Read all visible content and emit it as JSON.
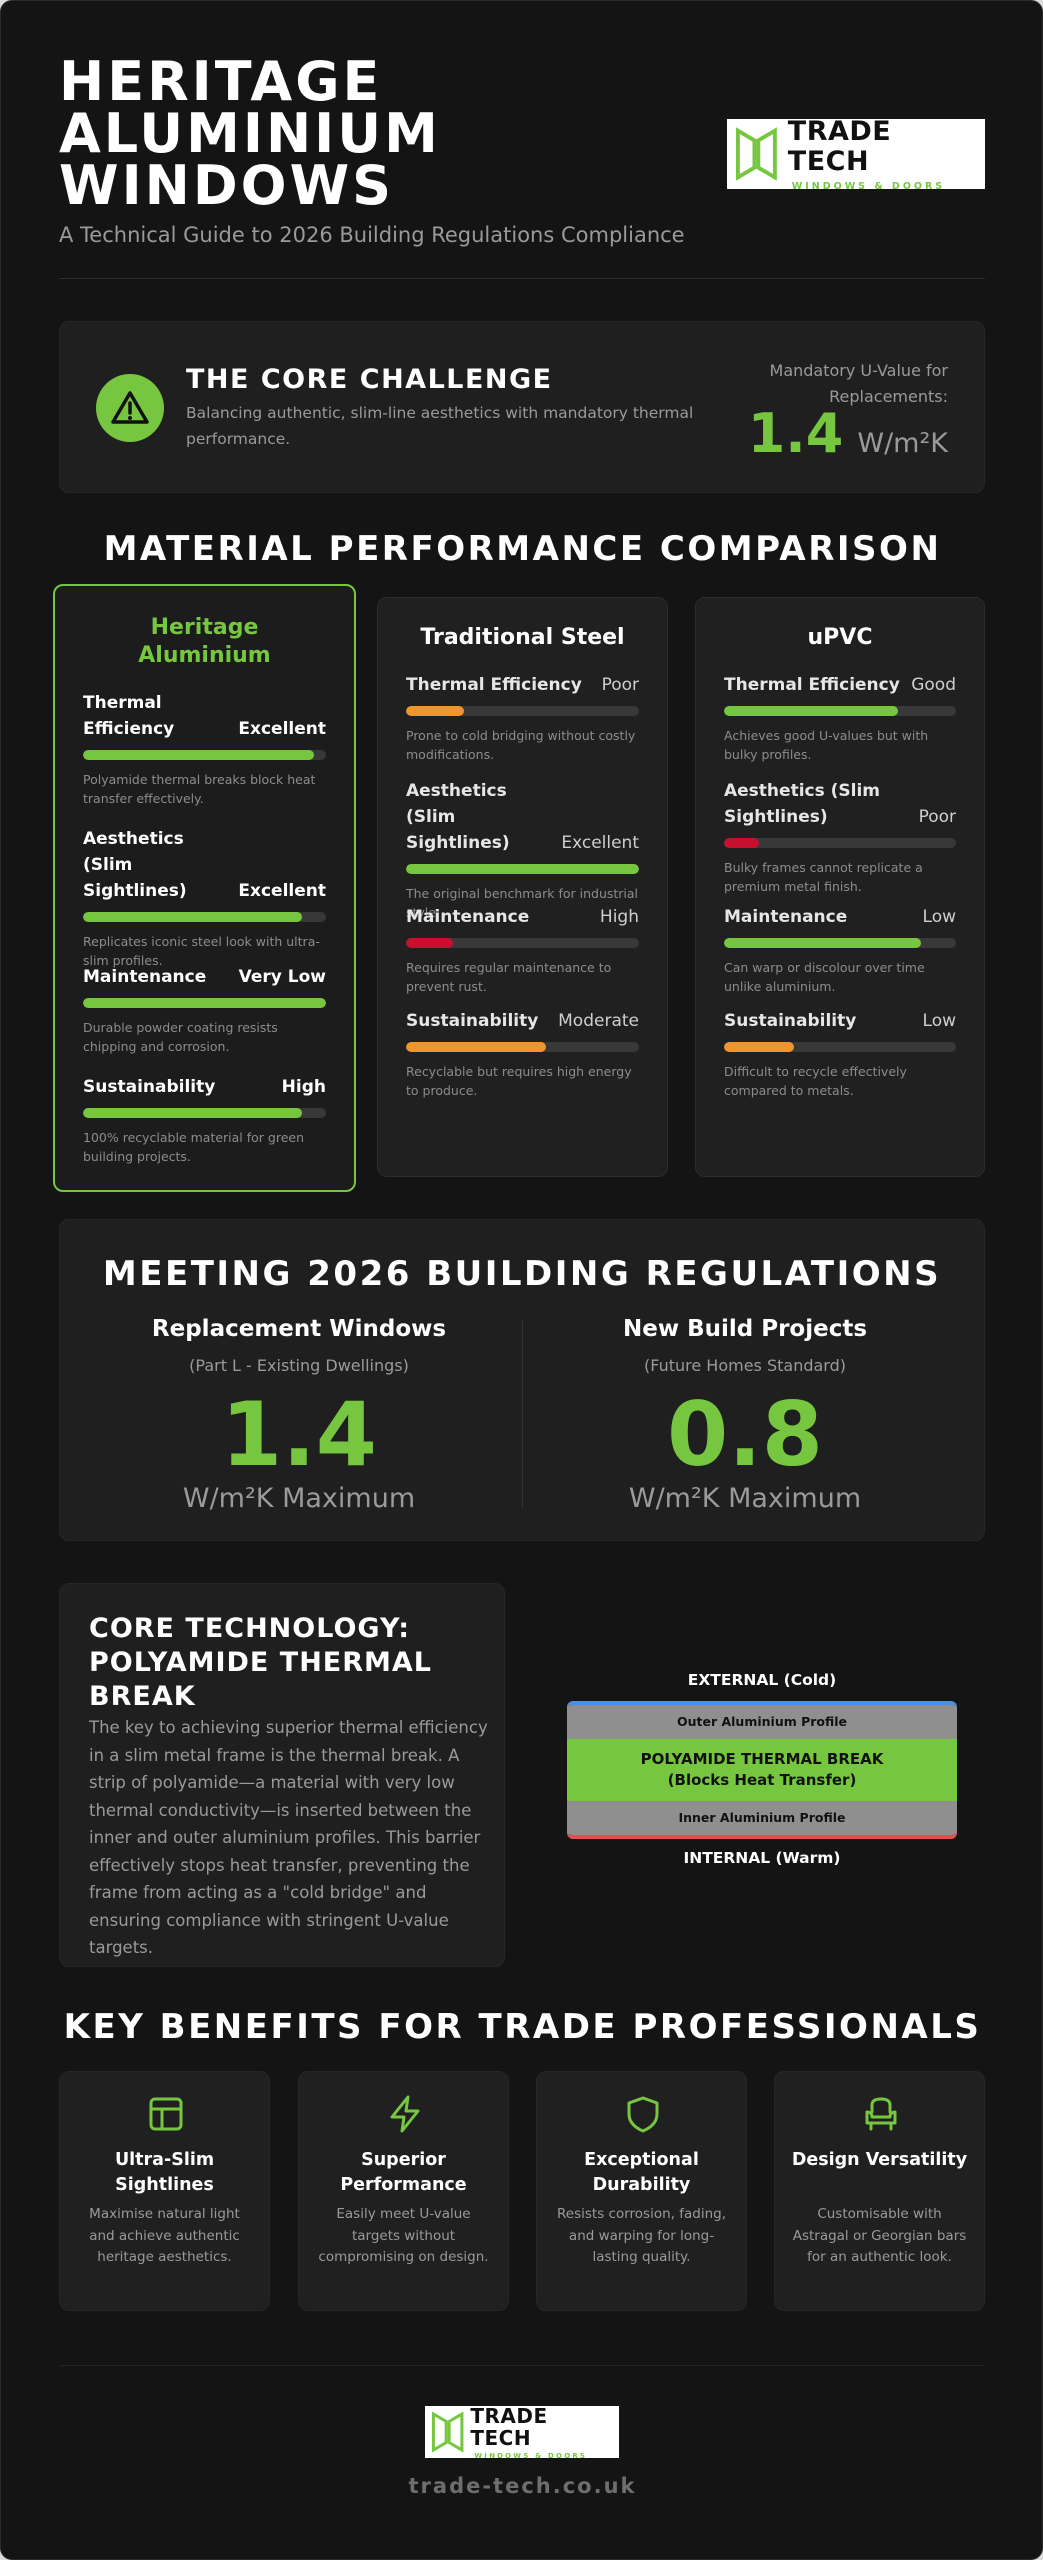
{
  "header": {
    "title": "HERITAGE ALUMINIUM WINDOWS",
    "subtitle": "A Technical Guide to 2026 Building Regulations Compliance",
    "logo": {
      "name": "TRADE TECH",
      "tagline": "WINDOWS & DOORS"
    }
  },
  "challenge": {
    "title": "THE CORE CHALLENGE",
    "description": "Balancing authentic, slim-line aesthetics with mandatory thermal performance.",
    "label": "Mandatory U-Value for Replacements:",
    "value": "1.4",
    "unit": "W/m²K"
  },
  "comparison": {
    "title": "MATERIAL PERFORMANCE COMPARISON",
    "materials": [
      {
        "name": "Heritage Aluminium",
        "metrics": [
          {
            "name": "Thermal Efficiency",
            "rating": "Excellent",
            "level": 0.95,
            "color": "#76c73f",
            "note": "Polyamide thermal breaks block heat transfer effectively."
          },
          {
            "name": "Aesthetics (Slim Sightlines)",
            "rating": "Excellent",
            "level": 0.9,
            "color": "#76c73f",
            "note": "Replicates iconic steel look with ultra-slim profiles."
          },
          {
            "name": "Maintenance",
            "rating": "Very Low",
            "level": 1.0,
            "color": "#76c73f",
            "note": "Durable powder coating resists chipping and corrosion."
          },
          {
            "name": "Sustainability",
            "rating": "High",
            "level": 0.9,
            "color": "#76c73f",
            "note": "100% recyclable material for green building projects."
          }
        ]
      },
      {
        "name": "Traditional Steel",
        "metrics": [
          {
            "name": "Thermal Efficiency",
            "rating": "Poor",
            "level": 0.25,
            "color": "#f0952b",
            "note": "Prone to cold bridging without costly modifications."
          },
          {
            "name": "Aesthetics (Slim Sightlines)",
            "rating": "Excellent",
            "level": 1.0,
            "color": "#76c73f",
            "note": "The original benchmark for industrial style."
          },
          {
            "name": "Maintenance",
            "rating": "High",
            "level": 0.2,
            "color": "#c8102e",
            "note": "Requires regular maintenance to prevent rust."
          },
          {
            "name": "Sustainability",
            "rating": "Moderate",
            "level": 0.6,
            "color": "#f0952b",
            "note": "Recyclable but requires high energy to produce."
          }
        ]
      },
      {
        "name": "uPVC",
        "metrics": [
          {
            "name": "Thermal Efficiency",
            "rating": "Good",
            "level": 0.75,
            "color": "#76c73f",
            "note": "Achieves good U-values but with bulky profiles."
          },
          {
            "name": "Aesthetics (Slim Sightlines)",
            "rating": "Poor",
            "level": 0.15,
            "color": "#c8102e",
            "note": "Bulky frames cannot replicate a premium metal finish."
          },
          {
            "name": "Maintenance",
            "rating": "Low",
            "level": 0.85,
            "color": "#76c73f",
            "note": "Can warp or discolour over time unlike aluminium."
          },
          {
            "name": "Sustainability",
            "rating": "Low",
            "level": 0.3,
            "color": "#f0952b",
            "note": "Difficult to recycle effectively compared to metals."
          }
        ]
      }
    ]
  },
  "regulations": {
    "title": "MEETING 2026 BUILDING REGULATIONS",
    "items": [
      {
        "heading": "Replacement Windows",
        "sub": "(Part L - Existing Dwellings)",
        "value": "1.4",
        "unit": "W/m²K Maximum"
      },
      {
        "heading": "New Build Projects",
        "sub": "(Future Homes Standard)",
        "value": "0.8",
        "unit": "W/m²K Maximum"
      }
    ]
  },
  "technology": {
    "title": "CORE TECHNOLOGY: POLYAMIDE THERMAL BREAK",
    "body": "The key to achieving superior thermal efficiency in a slim metal frame is the thermal break. A strip of polyamide—a material with very low thermal conductivity—is inserted between the inner and outer aluminium profiles. This barrier effectively stops heat transfer, preventing the frame from acting as a \"cold bridge\" and ensuring compliance with stringent U-value targets.",
    "diagram": {
      "external": "EXTERNAL (Cold)",
      "outer": "Outer Aluminium Profile",
      "break_line1": "POLYAMIDE THERMAL BREAK",
      "break_line2": "(Blocks Heat Transfer)",
      "inner": "Inner Aluminium Profile",
      "internal": "INTERNAL (Warm)"
    }
  },
  "benefits": {
    "title": "KEY BENEFITS FOR TRADE PROFESSIONALS",
    "items": [
      {
        "icon": "layout-icon",
        "title": "Ultra-Slim Sightlines",
        "desc": "Maximise natural light and achieve authentic heritage aesthetics."
      },
      {
        "icon": "lightning-icon",
        "title": "Superior Performance",
        "desc": "Easily meet U-value targets without compromising on design."
      },
      {
        "icon": "shield-icon",
        "title": "Exceptional Durability",
        "desc": "Resists corrosion, fading, and warping for long-lasting quality."
      },
      {
        "icon": "armchair-icon",
        "title": "Design Versatility",
        "desc": "Customisable with Astragal or Georgian bars for an authentic look."
      }
    ]
  },
  "footer": {
    "logo": {
      "name": "TRADE TECH",
      "tagline": "WINDOWS & DOORS"
    },
    "url": "trade-tech.co.uk"
  }
}
